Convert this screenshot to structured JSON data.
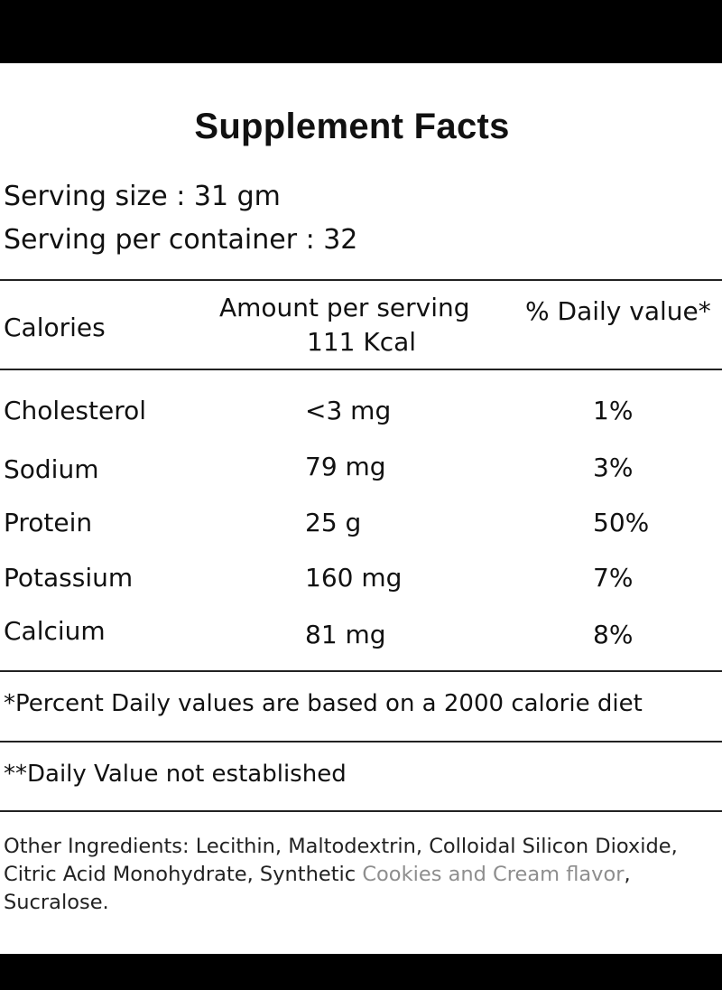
{
  "title": "Supplement Facts",
  "serving": {
    "size": "Serving size : 31 gm",
    "per_container": "Serving per container : 32"
  },
  "header": {
    "col1": "Calories",
    "col2_line1": "Amount per serving",
    "col2_line2": "111 Kcal",
    "col3": "% Daily value*"
  },
  "rows": [
    {
      "name": "Cholesterol",
      "amount": "<3 mg",
      "dv": "1%"
    },
    {
      "name": "Sodium",
      "amount": "79 mg",
      "dv": "3%"
    },
    {
      "name": "Protein",
      "amount": "25 g",
      "dv": "50%"
    },
    {
      "name": "Potassium",
      "amount": "160 mg",
      "dv": "7%"
    },
    {
      "name": "Calcium",
      "amount": "81 mg",
      "dv": "8%"
    }
  ],
  "footnotes": {
    "percent": "*Percent Daily values are based on a 2000 calorie diet",
    "not_established": "**Daily Value not established"
  },
  "ingredients": {
    "part1": "Other Ingredients: Lecithin, Maltodextrin, Colloidal Silicon Dioxide, Citric Acid Monohydrate, Synthetic",
    "flavor": "Cookies and Cream flavor",
    "part2": ", Sucralose."
  }
}
